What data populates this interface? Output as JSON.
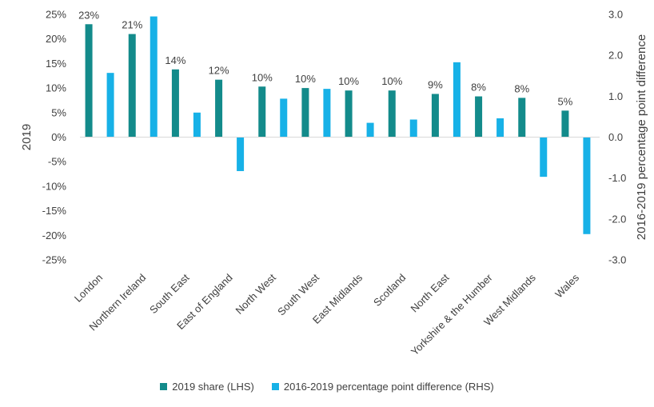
{
  "chart_data": {
    "type": "bar",
    "categories": [
      "London",
      "Northern Ireland",
      "South East",
      "East of England",
      "North West",
      "South West",
      "East Midlands",
      "Scotland",
      "North East",
      "Yorkshire & the Humber",
      "West Midlands",
      "Wales"
    ],
    "series": [
      {
        "name": "2019 share (LHS)",
        "axis": "left",
        "color": "#138b8b",
        "values": [
          23.0,
          21.0,
          13.8,
          11.7,
          10.3,
          10.0,
          9.5,
          9.5,
          8.8,
          8.3,
          8.0,
          5.4
        ],
        "data_labels": [
          "23%",
          "21%",
          "14%",
          "12%",
          "10%",
          "10%",
          "10%",
          "10%",
          "9%",
          "8%",
          "8%",
          "5%"
        ]
      },
      {
        "name": "2016-2019 percentage point difference (RHS)",
        "axis": "right",
        "color": "#17b1e7",
        "values": [
          1.57,
          2.95,
          0.6,
          -0.83,
          0.94,
          1.18,
          0.35,
          0.43,
          1.83,
          0.46,
          -0.97,
          -2.37
        ]
      }
    ],
    "left_axis": {
      "title": "2019",
      "min": -25,
      "max": 25,
      "step": 5,
      "tick_labels": [
        "25%",
        "20%",
        "15%",
        "10%",
        "5%",
        "0%",
        "-5%",
        "-10%",
        "-15%",
        "-20%",
        "-25%"
      ]
    },
    "right_axis": {
      "title": "2016-2019 percentage point difference",
      "min": -3.0,
      "max": 3.0,
      "step": 1.0,
      "tick_labels": [
        "3.0",
        "2.0",
        "1.0",
        "0.0",
        "-1.0",
        "-2.0",
        "-3.0"
      ]
    },
    "legend_position": "bottom",
    "grid": false
  }
}
